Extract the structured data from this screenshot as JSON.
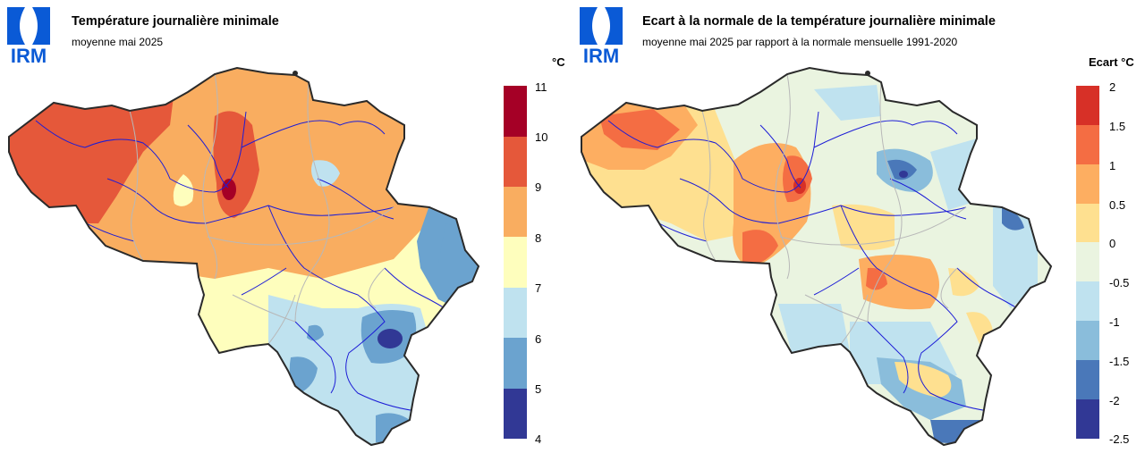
{
  "panels": [
    {
      "logo_text": "IRM",
      "title": "Température journalière minimale",
      "subtitle": "moyenne mai 2025",
      "legend_unit": "°C",
      "legend_ticks": [
        "11",
        "10",
        "9",
        "8",
        "7",
        "6",
        "5",
        "4"
      ],
      "legend_colors": [
        "#a50026",
        "#e5583a",
        "#f9ad60",
        "#fefebd",
        "#bfe2ef",
        "#6ba3cf",
        "#313895"
      ]
    },
    {
      "logo_text": "IRM",
      "title": "Ecart à la normale de la température journalière minimale",
      "subtitle": "moyenne mai 2025 par rapport à la normale mensuelle 1991-2020",
      "legend_unit": "Ecart °C",
      "legend_ticks": [
        "2",
        "1.5",
        "1",
        "0.5",
        "0",
        "-0.5",
        "-1",
        "-1.5",
        "-2",
        "-2.5"
      ],
      "legend_colors": [
        "#d73027",
        "#f46d43",
        "#fdae61",
        "#fee090",
        "#eaf4e0",
        "#bfe2ef",
        "#8abddb",
        "#4a78b9",
        "#313895"
      ]
    }
  ]
}
